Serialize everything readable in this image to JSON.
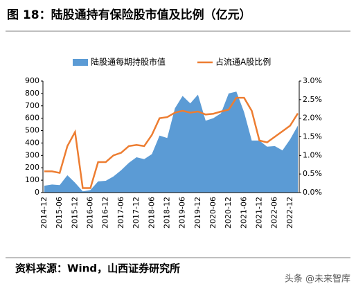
{
  "title": "图 18：陆股通持有保险股市值及比例（亿元）",
  "source": "资料来源：Wind，山西证券研究所",
  "watermark": "头条 @未来智库",
  "chart_data": {
    "type": "area-line",
    "categories": [
      "2014-12",
      null,
      "2015-06",
      null,
      "2015-12",
      null,
      "2016-06",
      null,
      "2016-12",
      null,
      "2017-06",
      null,
      "2017-12",
      null,
      "2018-06",
      null,
      "2018-12",
      null,
      "2019-06",
      null,
      "2019-12",
      null,
      "2020-06",
      null,
      "2020-12",
      null,
      "2021-06",
      null,
      "2021-12",
      null,
      "2022-06",
      null,
      "2022-12",
      null
    ],
    "series": [
      {
        "name": "陆股通每期持股市值",
        "type": "area",
        "color": "#5b9bd5",
        "values": [
          55,
          65,
          60,
          140,
          80,
          10,
          20,
          90,
          95,
          130,
          180,
          240,
          285,
          270,
          310,
          460,
          440,
          680,
          780,
          720,
          790,
          580,
          600,
          640,
          800,
          815,
          650,
          420,
          420,
          370,
          375,
          340,
          430,
          540
        ]
      },
      {
        "name": "占流通A股比例",
        "type": "line",
        "axis": "y2",
        "color": "#ed7d31",
        "values": [
          0.57,
          0.57,
          0.53,
          1.25,
          1.63,
          0.12,
          0.12,
          0.82,
          0.82,
          1.0,
          1.07,
          1.25,
          1.28,
          1.25,
          1.55,
          2.0,
          2.03,
          2.15,
          2.2,
          2.15,
          2.18,
          2.1,
          2.12,
          2.18,
          2.23,
          2.55,
          2.55,
          2.2,
          1.4,
          1.35,
          1.5,
          1.65,
          1.8,
          2.13
        ]
      }
    ],
    "ylim": [
      0,
      900
    ],
    "yticks": [
      0,
      100,
      200,
      300,
      400,
      500,
      600,
      700,
      800,
      900
    ],
    "y2lim": [
      0,
      3.0
    ],
    "y2ticks": [
      {
        "value": 0,
        "label": "0.0%"
      },
      {
        "value": 0.5,
        "label": "0.5%"
      },
      {
        "value": 1.0,
        "label": "1.0%"
      },
      {
        "value": 1.5,
        "label": "1.5%"
      },
      {
        "value": 2.0,
        "label": "2.0%"
      },
      {
        "value": 2.5,
        "label": "2.5%"
      },
      {
        "value": 3.0,
        "label": "3.0%"
      }
    ],
    "legend": "top"
  }
}
